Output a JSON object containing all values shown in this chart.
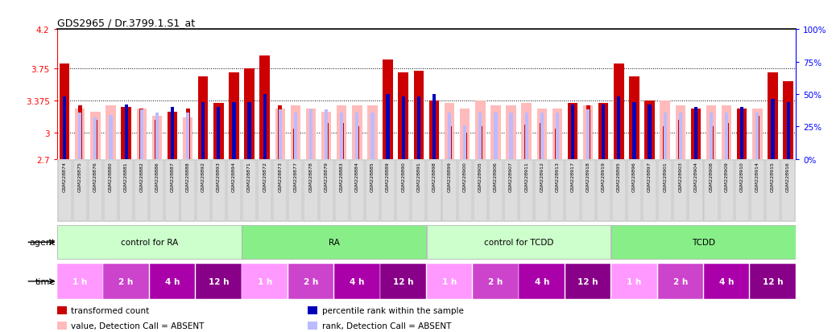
{
  "title": "GDS2965 / Dr.3799.1.S1_at",
  "samples": [
    "GSM228874",
    "GSM228875",
    "GSM228876",
    "GSM228880",
    "GSM228881",
    "GSM228882",
    "GSM228886",
    "GSM228887",
    "GSM228888",
    "GSM228892",
    "GSM228893",
    "GSM228894",
    "GSM228871",
    "GSM228872",
    "GSM228873",
    "GSM228877",
    "GSM228878",
    "GSM228879",
    "GSM228883",
    "GSM228884",
    "GSM228885",
    "GSM228889",
    "GSM228890",
    "GSM228891",
    "GSM228898",
    "GSM228899",
    "GSM228900",
    "GSM228905",
    "GSM228906",
    "GSM228907",
    "GSM228911",
    "GSM228912",
    "GSM228913",
    "GSM228917",
    "GSM228918",
    "GSM228919",
    "GSM228895",
    "GSM228896",
    "GSM228897",
    "GSM228901",
    "GSM228903",
    "GSM228904",
    "GSM228908",
    "GSM228909",
    "GSM228910",
    "GSM228914",
    "GSM228915",
    "GSM228916"
  ],
  "red_values": [
    3.8,
    3.32,
    3.15,
    3.15,
    3.3,
    3.28,
    3.15,
    3.25,
    3.28,
    3.65,
    3.35,
    3.7,
    3.75,
    3.9,
    3.32,
    3.05,
    3.1,
    3.12,
    3.12,
    3.08,
    3.12,
    3.85,
    3.7,
    3.72,
    3.38,
    3.08,
    3.0,
    3.08,
    3.08,
    3.08,
    3.1,
    3.12,
    3.05,
    3.35,
    3.32,
    3.35,
    3.8,
    3.65,
    3.38,
    3.08,
    3.15,
    3.28,
    3.08,
    3.12,
    3.28,
    3.2,
    3.7,
    3.6
  ],
  "pink_values": [
    3.32,
    3.28,
    3.25,
    3.32,
    3.15,
    3.28,
    3.2,
    3.28,
    3.18,
    3.38,
    3.38,
    3.5,
    3.42,
    3.85,
    3.28,
    3.32,
    3.28,
    3.25,
    3.32,
    3.32,
    3.32,
    3.45,
    3.38,
    3.38,
    3.38,
    3.35,
    3.28,
    3.38,
    3.32,
    3.32,
    3.35,
    3.28,
    3.28,
    3.38,
    3.32,
    3.32,
    3.55,
    3.62,
    3.38,
    3.38,
    3.32,
    3.55,
    3.32,
    3.32,
    3.38,
    3.28,
    3.72,
    3.55
  ],
  "blue_pct": [
    48,
    38,
    34,
    36,
    42,
    40,
    38,
    40,
    38,
    44,
    40,
    44,
    44,
    50,
    40,
    38,
    40,
    40,
    38,
    38,
    38,
    50,
    48,
    48,
    50,
    38,
    28,
    38,
    38,
    38,
    38,
    38,
    38,
    42,
    40,
    42,
    48,
    44,
    42,
    38,
    38,
    40,
    38,
    38,
    40,
    38,
    46,
    44
  ],
  "lightblue_pct": [
    42,
    36,
    32,
    34,
    38,
    38,
    36,
    38,
    36,
    42,
    38,
    42,
    42,
    48,
    38,
    36,
    38,
    38,
    36,
    36,
    36,
    48,
    44,
    44,
    46,
    36,
    26,
    36,
    36,
    36,
    36,
    36,
    36,
    40,
    38,
    40,
    44,
    42,
    40,
    36,
    36,
    38,
    36,
    36,
    38,
    36,
    44,
    42
  ],
  "absent_red": [
    false,
    true,
    true,
    true,
    false,
    true,
    true,
    false,
    true,
    false,
    false,
    false,
    false,
    false,
    true,
    true,
    true,
    true,
    true,
    true,
    true,
    false,
    false,
    false,
    false,
    true,
    true,
    true,
    true,
    true,
    true,
    true,
    true,
    false,
    true,
    false,
    false,
    false,
    false,
    true,
    true,
    false,
    true,
    true,
    false,
    true,
    false,
    false
  ],
  "absent_blue": [
    false,
    true,
    true,
    true,
    false,
    true,
    true,
    false,
    true,
    false,
    false,
    false,
    false,
    false,
    true,
    true,
    true,
    true,
    true,
    true,
    true,
    false,
    false,
    false,
    false,
    true,
    true,
    true,
    true,
    true,
    true,
    true,
    true,
    false,
    true,
    false,
    false,
    false,
    false,
    true,
    true,
    false,
    true,
    true,
    false,
    true,
    false,
    false
  ],
  "ymin": 2.7,
  "ymax": 4.2,
  "yticks": [
    2.7,
    3.0,
    3.375,
    3.75,
    4.2
  ],
  "ytick_labels": [
    "2.7",
    "3",
    "3.375",
    "3.75",
    "4.2"
  ],
  "dotted_lines": [
    3.0,
    3.375,
    3.75
  ],
  "bar_color_red": "#cc0000",
  "bar_color_pink": "#ffbbbb",
  "bar_color_blue": "#0000bb",
  "bar_color_lightblue": "#bbbbff",
  "agent_groups": [
    {
      "label": "control for RA",
      "start": 0,
      "end": 11,
      "color": "#ccffcc"
    },
    {
      "label": "RA",
      "start": 12,
      "end": 23,
      "color": "#88ee88"
    },
    {
      "label": "control for TCDD",
      "start": 24,
      "end": 35,
      "color": "#ccffcc"
    },
    {
      "label": "TCDD",
      "start": 36,
      "end": 47,
      "color": "#88ee88"
    }
  ],
  "time_groups_colors": [
    "#ff99ff",
    "#cc44cc",
    "#aa00aa",
    "#880088"
  ],
  "time_groups_labels": [
    "1 h",
    "2 h",
    "4 h",
    "12 h"
  ],
  "legend_items": [
    {
      "color": "#cc0000",
      "label": "transformed count"
    },
    {
      "color": "#0000bb",
      "label": "percentile rank within the sample"
    },
    {
      "color": "#ffbbbb",
      "label": "value, Detection Call = ABSENT"
    },
    {
      "color": "#bbbbff",
      "label": "rank, Detection Call = ABSENT"
    }
  ]
}
